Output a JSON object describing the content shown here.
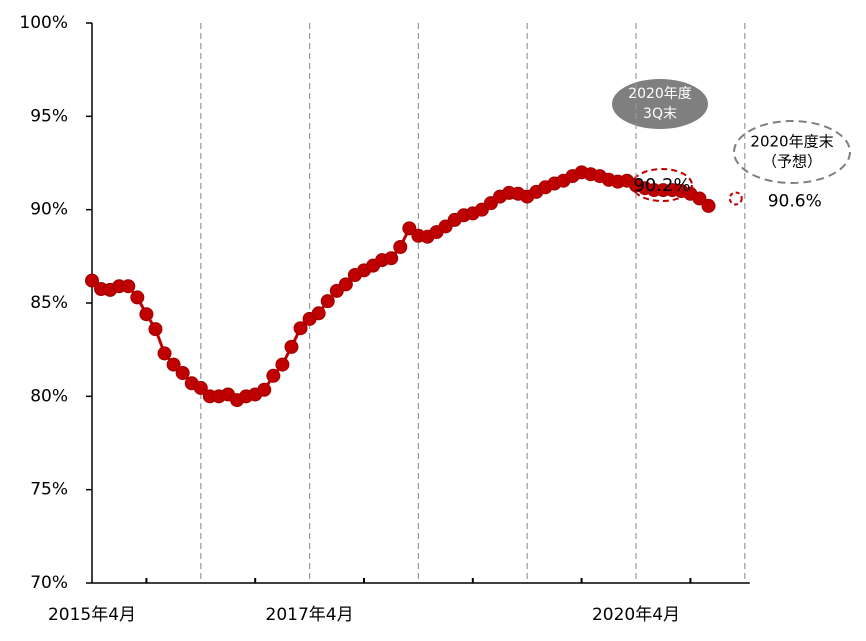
{
  "chart_data": {
    "type": "line",
    "categories": [
      "2015年4月",
      null,
      null,
      null,
      null,
      null,
      null,
      null,
      null,
      null,
      null,
      null,
      null,
      null,
      null,
      null,
      null,
      null,
      null,
      null,
      null,
      null,
      null,
      null,
      "2017年4月",
      null,
      null,
      null,
      null,
      null,
      null,
      null,
      null,
      null,
      null,
      null,
      null,
      null,
      null,
      null,
      null,
      null,
      null,
      null,
      null,
      null,
      null,
      null,
      null,
      null,
      null,
      null,
      null,
      null,
      null,
      null,
      null,
      null,
      null,
      null,
      "2020年4月",
      null,
      null,
      null,
      null,
      null,
      null,
      null,
      null,
      null,
      null,
      null,
      null
    ],
    "series": [
      {
        "color": "#c00000",
        "values": [
          86.2,
          85.75,
          85.7,
          85.9,
          85.9,
          85.3,
          84.4,
          83.6,
          82.3,
          81.7,
          81.25,
          80.7,
          80.45,
          80.0,
          80.0,
          80.1,
          79.8,
          80.0,
          80.1,
          80.35,
          81.1,
          81.7,
          82.65,
          83.65,
          84.15,
          84.45,
          85.1,
          85.65,
          86.0,
          86.5,
          86.75,
          87.0,
          87.3,
          87.4,
          88.0,
          89.0,
          88.6,
          88.55,
          88.8,
          89.1,
          89.45,
          89.7,
          89.8,
          90.0,
          90.35,
          90.7,
          90.9,
          90.85,
          90.7,
          90.95,
          91.2,
          91.4,
          91.55,
          91.8,
          92.0,
          91.9,
          91.8,
          91.6,
          91.5,
          91.55,
          91.3,
          91.15,
          91.05,
          91.05,
          91.05,
          91.0,
          90.85,
          90.6,
          90.2,
          null,
          null,
          null,
          null
        ],
        "value_labels": [
          null,
          null,
          null,
          null,
          null,
          null,
          null,
          null,
          null,
          null,
          null,
          null,
          null,
          null,
          null,
          null,
          null,
          null,
          null,
          null,
          null,
          null,
          null,
          null,
          null,
          null,
          null,
          null,
          null,
          null,
          null,
          null,
          null,
          null,
          null,
          null,
          null,
          null,
          null,
          null,
          null,
          null,
          null,
          null,
          null,
          null,
          null,
          null,
          null,
          null,
          null,
          null,
          null,
          null,
          null,
          null,
          null,
          null,
          null,
          null,
          null,
          null,
          null,
          null,
          null,
          null,
          null,
          null,
          "90.2%",
          null,
          null,
          null,
          null
        ]
      },
      {
        "color": "#c00000",
        "dashed": true,
        "values": [
          null,
          null,
          null,
          null,
          null,
          null,
          null,
          null,
          null,
          null,
          null,
          null,
          null,
          null,
          null,
          null,
          null,
          null,
          null,
          null,
          null,
          null,
          null,
          null,
          null,
          null,
          null,
          null,
          null,
          null,
          null,
          null,
          null,
          null,
          null,
          null,
          null,
          null,
          null,
          null,
          null,
          null,
          null,
          null,
          null,
          null,
          null,
          null,
          null,
          null,
          null,
          null,
          null,
          null,
          null,
          null,
          null,
          null,
          null,
          null,
          null,
          null,
          null,
          null,
          null,
          null,
          null,
          null,
          null,
          null,
          null,
          90.6,
          null
        ],
        "value_labels": [
          null,
          null,
          null,
          null,
          null,
          null,
          null,
          null,
          null,
          null,
          null,
          null,
          null,
          null,
          null,
          null,
          null,
          null,
          null,
          null,
          null,
          null,
          null,
          null,
          null,
          null,
          null,
          null,
          null,
          null,
          null,
          null,
          null,
          null,
          null,
          null,
          null,
          null,
          null,
          null,
          null,
          null,
          null,
          null,
          null,
          null,
          null,
          null,
          null,
          null,
          null,
          null,
          null,
          null,
          null,
          null,
          null,
          null,
          null,
          null,
          null,
          null,
          null,
          null,
          null,
          null,
          null,
          null,
          null,
          null,
          null,
          "90.6%",
          null
        ]
      }
    ],
    "annotations": [
      {
        "lines": [
          "2020年度",
          "3Q末"
        ]
      },
      {
        "lines": [
          "2020年度末",
          "（予想）"
        ]
      }
    ],
    "ylim": [
      70,
      100
    ],
    "yticks": [
      {
        "value": 70,
        "label": "70%"
      },
      {
        "value": 75,
        "label": "75%"
      },
      {
        "value": 80,
        "label": "80%"
      },
      {
        "value": 85,
        "label": "85%"
      },
      {
        "value": 90,
        "label": "90%"
      },
      {
        "value": 95,
        "label": "95%"
      },
      {
        "value": 100,
        "label": "100%"
      }
    ]
  }
}
